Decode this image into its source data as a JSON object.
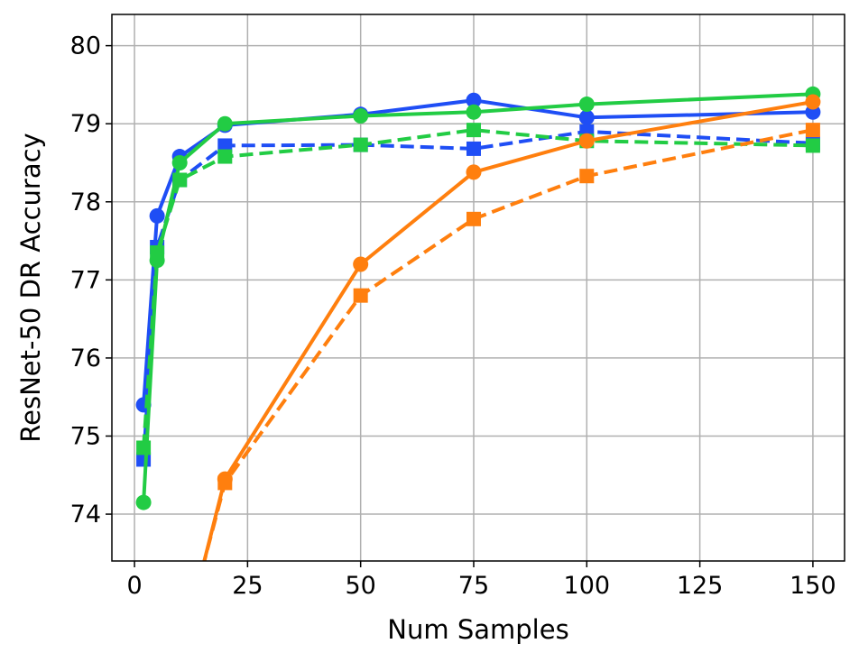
{
  "chart_data": {
    "type": "line",
    "title": "",
    "xlabel": "Num Samples",
    "ylabel": "ResNet-50 DR Accuracy",
    "xlim": [
      -5,
      157
    ],
    "ylim": [
      73.4,
      80.4
    ],
    "xticks": [
      0,
      25,
      50,
      75,
      100,
      125,
      150
    ],
    "yticks": [
      74,
      75,
      76,
      77,
      78,
      79,
      80
    ],
    "grid": true,
    "legend": "none",
    "series": [
      {
        "color": "#1f4ef5",
        "linestyle": "solid",
        "marker": "circle",
        "points": [
          [
            2,
            75.4
          ],
          [
            5,
            77.82
          ],
          [
            10,
            78.58
          ],
          [
            20,
            78.98
          ],
          [
            50,
            79.12
          ],
          [
            75,
            79.3
          ],
          [
            100,
            79.08
          ],
          [
            150,
            79.15
          ]
        ]
      },
      {
        "color": "#1f4ef5",
        "linestyle": "dashed",
        "marker": "square",
        "points": [
          [
            2,
            74.7
          ],
          [
            5,
            77.42
          ],
          [
            10,
            78.28
          ],
          [
            20,
            78.72
          ],
          [
            50,
            78.73
          ],
          [
            75,
            78.68
          ],
          [
            100,
            78.9
          ],
          [
            150,
            78.75
          ]
        ]
      },
      {
        "color": "#22cc44",
        "linestyle": "solid",
        "marker": "circle",
        "points": [
          [
            2,
            74.15
          ],
          [
            5,
            77.25
          ],
          [
            10,
            78.5
          ],
          [
            20,
            79.0
          ],
          [
            50,
            79.1
          ],
          [
            75,
            79.15
          ],
          [
            100,
            79.25
          ],
          [
            150,
            79.38
          ]
        ]
      },
      {
        "color": "#22cc44",
        "linestyle": "dashed",
        "marker": "square",
        "points": [
          [
            2,
            74.85
          ],
          [
            5,
            77.35
          ],
          [
            10,
            78.28
          ],
          [
            20,
            78.58
          ],
          [
            50,
            78.73
          ],
          [
            75,
            78.92
          ],
          [
            100,
            78.78
          ],
          [
            150,
            78.72
          ]
        ]
      },
      {
        "color": "#ff7f0e",
        "linestyle": "solid",
        "marker": "circle",
        "offscreen_start": [
          15,
          73.3
        ],
        "points": [
          [
            20,
            74.45
          ],
          [
            50,
            77.2
          ],
          [
            75,
            78.38
          ],
          [
            100,
            78.78
          ],
          [
            150,
            79.28
          ]
        ]
      },
      {
        "color": "#ff7f0e",
        "linestyle": "dashed",
        "marker": "square",
        "offscreen_start": [
          15,
          73.3
        ],
        "points": [
          [
            20,
            74.4
          ],
          [
            50,
            76.8
          ],
          [
            75,
            77.78
          ],
          [
            100,
            78.33
          ],
          [
            150,
            78.92
          ]
        ]
      }
    ]
  }
}
